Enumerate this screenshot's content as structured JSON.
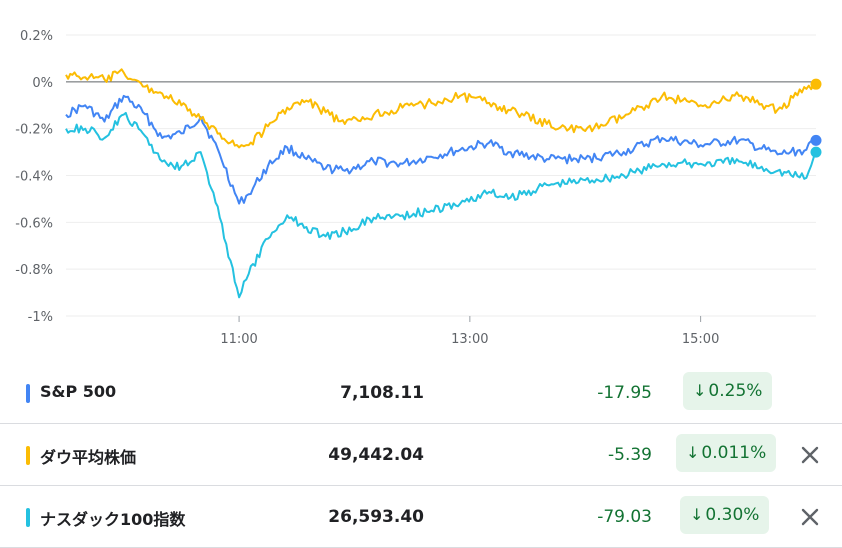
{
  "chart_data": {
    "type": "line",
    "yunit": "%",
    "ylim": [
      -1.0,
      0.2
    ],
    "yticks": [
      "0.2%",
      "0%",
      "-0.2%",
      "-0.4%",
      "-0.6%",
      "-0.8%",
      "-1%"
    ],
    "xlim": [
      "09:30",
      "16:00"
    ],
    "xticks": [
      "11:00",
      "13:00",
      "15:00"
    ],
    "grid": true,
    "baseline": 0,
    "series": [
      {
        "name": "S&P 500",
        "color": "#4285f4",
        "points": [
          [
            "09:30",
            -0.14
          ],
          [
            "09:40",
            -0.1
          ],
          [
            "09:50",
            -0.17
          ],
          [
            "10:00",
            -0.06
          ],
          [
            "10:10",
            -0.13
          ],
          [
            "10:20",
            -0.24
          ],
          [
            "10:30",
            -0.22
          ],
          [
            "10:40",
            -0.15
          ],
          [
            "10:50",
            -0.31
          ],
          [
            "11:00",
            -0.52
          ],
          [
            "11:05",
            -0.48
          ],
          [
            "11:15",
            -0.36
          ],
          [
            "11:25",
            -0.28
          ],
          [
            "11:35",
            -0.33
          ],
          [
            "11:45",
            -0.37
          ],
          [
            "11:55",
            -0.38
          ],
          [
            "12:10",
            -0.34
          ],
          [
            "12:25",
            -0.35
          ],
          [
            "12:40",
            -0.32
          ],
          [
            "12:55",
            -0.29
          ],
          [
            "13:10",
            -0.26
          ],
          [
            "13:20",
            -0.3
          ],
          [
            "13:40",
            -0.33
          ],
          [
            "14:00",
            -0.33
          ],
          [
            "14:20",
            -0.3
          ],
          [
            "14:40",
            -0.24
          ],
          [
            "15:00",
            -0.27
          ],
          [
            "15:20",
            -0.25
          ],
          [
            "15:40",
            -0.31
          ],
          [
            "15:55",
            -0.29
          ],
          [
            "16:00",
            -0.25
          ]
        ]
      },
      {
        "name": "ダウ平均株価",
        "color": "#fbbc04",
        "points": [
          [
            "09:30",
            0.03
          ],
          [
            "09:40",
            0.02
          ],
          [
            "09:50",
            0.01
          ],
          [
            "10:00",
            0.04
          ],
          [
            "10:10",
            -0.02
          ],
          [
            "10:20",
            -0.05
          ],
          [
            "10:30",
            -0.1
          ],
          [
            "10:40",
            -0.16
          ],
          [
            "10:50",
            -0.22
          ],
          [
            "11:00",
            -0.28
          ],
          [
            "11:05",
            -0.27
          ],
          [
            "11:15",
            -0.19
          ],
          [
            "11:25",
            -0.11
          ],
          [
            "11:35",
            -0.08
          ],
          [
            "11:45",
            -0.13
          ],
          [
            "11:55",
            -0.18
          ],
          [
            "12:10",
            -0.14
          ],
          [
            "12:25",
            -0.11
          ],
          [
            "12:40",
            -0.09
          ],
          [
            "12:55",
            -0.06
          ],
          [
            "13:10",
            -0.09
          ],
          [
            "13:20",
            -0.12
          ],
          [
            "13:40",
            -0.18
          ],
          [
            "14:00",
            -0.21
          ],
          [
            "14:20",
            -0.15
          ],
          [
            "14:40",
            -0.06
          ],
          [
            "15:00",
            -0.1
          ],
          [
            "15:20",
            -0.06
          ],
          [
            "15:40",
            -0.12
          ],
          [
            "15:55",
            -0.03
          ],
          [
            "16:00",
            -0.01
          ]
        ]
      },
      {
        "name": "ナスダック100指数",
        "color": "#24c1e0",
        "points": [
          [
            "09:30",
            -0.2
          ],
          [
            "09:40",
            -0.2
          ],
          [
            "09:50",
            -0.24
          ],
          [
            "10:00",
            -0.14
          ],
          [
            "10:10",
            -0.22
          ],
          [
            "10:20",
            -0.34
          ],
          [
            "10:30",
            -0.36
          ],
          [
            "10:40",
            -0.3
          ],
          [
            "10:50",
            -0.58
          ],
          [
            "11:00",
            -0.92
          ],
          [
            "11:05",
            -0.82
          ],
          [
            "11:15",
            -0.67
          ],
          [
            "11:25",
            -0.57
          ],
          [
            "11:35",
            -0.62
          ],
          [
            "11:45",
            -0.66
          ],
          [
            "11:55",
            -0.64
          ],
          [
            "12:10",
            -0.58
          ],
          [
            "12:25",
            -0.57
          ],
          [
            "12:40",
            -0.55
          ],
          [
            "12:55",
            -0.52
          ],
          [
            "13:10",
            -0.47
          ],
          [
            "13:20",
            -0.5
          ],
          [
            "13:40",
            -0.44
          ],
          [
            "14:00",
            -0.42
          ],
          [
            "14:20",
            -0.4
          ],
          [
            "14:40",
            -0.35
          ],
          [
            "15:00",
            -0.35
          ],
          [
            "15:20",
            -0.34
          ],
          [
            "15:40",
            -0.38
          ],
          [
            "15:55",
            -0.41
          ],
          [
            "16:00",
            -0.3
          ]
        ]
      }
    ]
  },
  "rows": [
    {
      "name": "S&P 500",
      "price": "7,108.11",
      "change": "-17.95",
      "pct": "0.25%",
      "color": "#4285f4",
      "removable": false
    },
    {
      "name": "ダウ平均株価",
      "price": "49,442.04",
      "change": "-5.39",
      "pct": "0.011%",
      "color": "#fbbc04",
      "removable": true
    },
    {
      "name": "ナスダック100指数",
      "price": "26,593.40",
      "change": "-79.03",
      "pct": "0.30%",
      "color": "#24c1e0",
      "removable": true
    }
  ],
  "icons": {
    "down_arrow": "arrow-down-icon",
    "close": "close-icon"
  }
}
